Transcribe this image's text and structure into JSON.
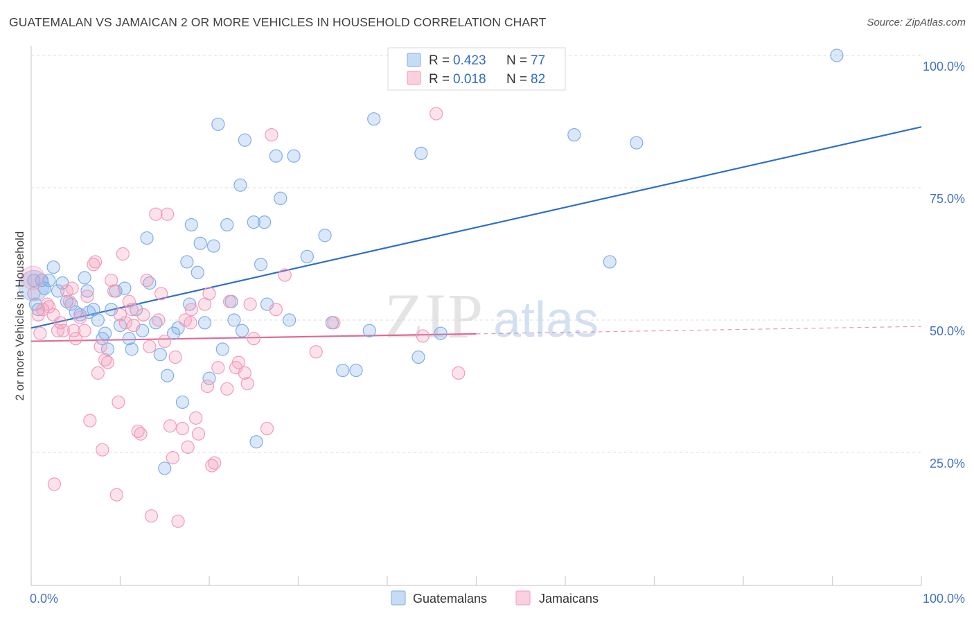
{
  "title": "GUATEMALAN VS JAMAICAN 2 OR MORE VEHICLES IN HOUSEHOLD CORRELATION CHART",
  "source": "Source: ZipAtlas.com",
  "chart_data": {
    "type": "scatter",
    "title": "GUATEMALAN VS JAMAICAN 2 OR MORE VEHICLES IN HOUSEHOLD CORRELATION CHART",
    "ylabel": "2 or more Vehicles in Household",
    "xlabel": "",
    "xlim": [
      0,
      100
    ],
    "ylim": [
      0,
      102
    ],
    "x_tick_labels": [
      "0.0%",
      "100.0%"
    ],
    "y_ticks": [
      {
        "value": 25,
        "label": "25.0%"
      },
      {
        "value": 50,
        "label": "50.0%"
      },
      {
        "value": 75,
        "label": "75.0%"
      },
      {
        "value": 100,
        "label": "100.0%"
      }
    ],
    "grid": true,
    "watermark": "ZIPatlas",
    "legend": [
      {
        "name": "Guatemalans",
        "r_label": "R =",
        "r": "0.423",
        "n_label": "N =",
        "n": "77",
        "color": "#7faee8"
      },
      {
        "name": "Jamaicans",
        "r_label": "R =",
        "r": "0.018",
        "n_label": "N =",
        "n": "82",
        "color": "#f39ab8"
      }
    ],
    "series": [
      {
        "name": "Guatemalans",
        "color": "#7faee8",
        "trend": {
          "x0": 0,
          "y0": 48.5,
          "x1": 100,
          "y1": 86.5,
          "color": "#2f6fc9",
          "dash_from": null
        },
        "points": [
          [
            0.3,
            57.5
          ],
          [
            0.5,
            53
          ],
          [
            0.8,
            52
          ],
          [
            1.2,
            57.5
          ],
          [
            1.5,
            56
          ],
          [
            2,
            57.5
          ],
          [
            2.5,
            60
          ],
          [
            3,
            55.5
          ],
          [
            3.5,
            57
          ],
          [
            4,
            53.5
          ],
          [
            4.5,
            53
          ],
          [
            5,
            51.5
          ],
          [
            5.5,
            51
          ],
          [
            6,
            58
          ],
          [
            6.3,
            55.5
          ],
          [
            6.5,
            51.5
          ],
          [
            7,
            52
          ],
          [
            7.5,
            50
          ],
          [
            8,
            46.5
          ],
          [
            8.3,
            47.5
          ],
          [
            8.6,
            44.5
          ],
          [
            9,
            52
          ],
          [
            9.5,
            55.5
          ],
          [
            10,
            49
          ],
          [
            10.5,
            56
          ],
          [
            11,
            46.5
          ],
          [
            11.3,
            44.5
          ],
          [
            11.8,
            52
          ],
          [
            12.5,
            48
          ],
          [
            13,
            65.5
          ],
          [
            13.3,
            57
          ],
          [
            14,
            49.5
          ],
          [
            14.5,
            43.5
          ],
          [
            15,
            22
          ],
          [
            15.3,
            39.5
          ],
          [
            16,
            47.5
          ],
          [
            16.5,
            48.5
          ],
          [
            17,
            34.5
          ],
          [
            17.5,
            61
          ],
          [
            17.8,
            53
          ],
          [
            18,
            68
          ],
          [
            18.7,
            59
          ],
          [
            19,
            64.5
          ],
          [
            19.5,
            49.5
          ],
          [
            20,
            39
          ],
          [
            20.5,
            64
          ],
          [
            21,
            87
          ],
          [
            21.5,
            44.5
          ],
          [
            22,
            68
          ],
          [
            22.5,
            53.5
          ],
          [
            22.8,
            50
          ],
          [
            23.5,
            75.5
          ],
          [
            23.7,
            48
          ],
          [
            24,
            84
          ],
          [
            25,
            68.5
          ],
          [
            25.3,
            27
          ],
          [
            25.8,
            60.5
          ],
          [
            26.2,
            68.5
          ],
          [
            26.5,
            53
          ],
          [
            27.5,
            81
          ],
          [
            28,
            73
          ],
          [
            29,
            50
          ],
          [
            29.5,
            81
          ],
          [
            31,
            62
          ],
          [
            33,
            66
          ],
          [
            33.8,
            49.5
          ],
          [
            35,
            40.5
          ],
          [
            36.5,
            40.5
          ],
          [
            38,
            48
          ],
          [
            38.5,
            88
          ],
          [
            43.5,
            43
          ],
          [
            43.8,
            81.5
          ],
          [
            46,
            47.5
          ],
          [
            61,
            85
          ],
          [
            65,
            61
          ],
          [
            68,
            83.5
          ],
          [
            90.5,
            100
          ]
        ]
      },
      {
        "name": "Jamaicans",
        "color": "#f39ab8",
        "trend": {
          "x0": 0,
          "y0": 46,
          "x1": 100,
          "y1": 48.8,
          "color": "#e06a97",
          "dash_from": 50
        },
        "points": [
          [
            0.3,
            55
          ],
          [
            0.8,
            51
          ],
          [
            1,
            47.5
          ],
          [
            1.3,
            52
          ],
          [
            1.8,
            53
          ],
          [
            2,
            52.5
          ],
          [
            2.5,
            51
          ],
          [
            2.6,
            19
          ],
          [
            3,
            48
          ],
          [
            3.3,
            49.5
          ],
          [
            3.6,
            48
          ],
          [
            4,
            55.5
          ],
          [
            4.3,
            53.5
          ],
          [
            4.6,
            56
          ],
          [
            4.8,
            48
          ],
          [
            5,
            46.5
          ],
          [
            5.5,
            50.5
          ],
          [
            6,
            48
          ],
          [
            6.3,
            54.5
          ],
          [
            6.6,
            31
          ],
          [
            7,
            60.5
          ],
          [
            7.2,
            61
          ],
          [
            7.5,
            40
          ],
          [
            7.8,
            45
          ],
          [
            8,
            25.5
          ],
          [
            8.3,
            42.5
          ],
          [
            8.6,
            42
          ],
          [
            9,
            57.5
          ],
          [
            9.3,
            55.5
          ],
          [
            9.6,
            17
          ],
          [
            9.8,
            34.5
          ],
          [
            10,
            51
          ],
          [
            10.3,
            62.5
          ],
          [
            10.6,
            49.5
          ],
          [
            11,
            53.5
          ],
          [
            11.3,
            52
          ],
          [
            11.5,
            49
          ],
          [
            12,
            29
          ],
          [
            12.3,
            28.5
          ],
          [
            12.6,
            51
          ],
          [
            13,
            57.5
          ],
          [
            13.3,
            45
          ],
          [
            13.5,
            13
          ],
          [
            14,
            70
          ],
          [
            14.3,
            50
          ],
          [
            14.6,
            55
          ],
          [
            15,
            46
          ],
          [
            15.3,
            70
          ],
          [
            15.6,
            30
          ],
          [
            15.9,
            24
          ],
          [
            16.2,
            43
          ],
          [
            16.5,
            12
          ],
          [
            17,
            29.5
          ],
          [
            17.3,
            50
          ],
          [
            17.6,
            26
          ],
          [
            17.9,
            49.5
          ],
          [
            18,
            52
          ],
          [
            18.5,
            31.5
          ],
          [
            18.8,
            28.5
          ],
          [
            19.5,
            53
          ],
          [
            19.8,
            37.5
          ],
          [
            20,
            55
          ],
          [
            20.3,
            22.5
          ],
          [
            20.6,
            23
          ],
          [
            21,
            41
          ],
          [
            22,
            37
          ],
          [
            22.3,
            53.5
          ],
          [
            23,
            41
          ],
          [
            23.3,
            42
          ],
          [
            24,
            40
          ],
          [
            24.3,
            38
          ],
          [
            24.6,
            53
          ],
          [
            25,
            46.5
          ],
          [
            26.5,
            29.5
          ],
          [
            27,
            85
          ],
          [
            27.5,
            52
          ],
          [
            28.5,
            58.5
          ],
          [
            32,
            44
          ],
          [
            34,
            49.5
          ],
          [
            44,
            47
          ],
          [
            45.5,
            89
          ],
          [
            48,
            40
          ]
        ]
      }
    ]
  }
}
